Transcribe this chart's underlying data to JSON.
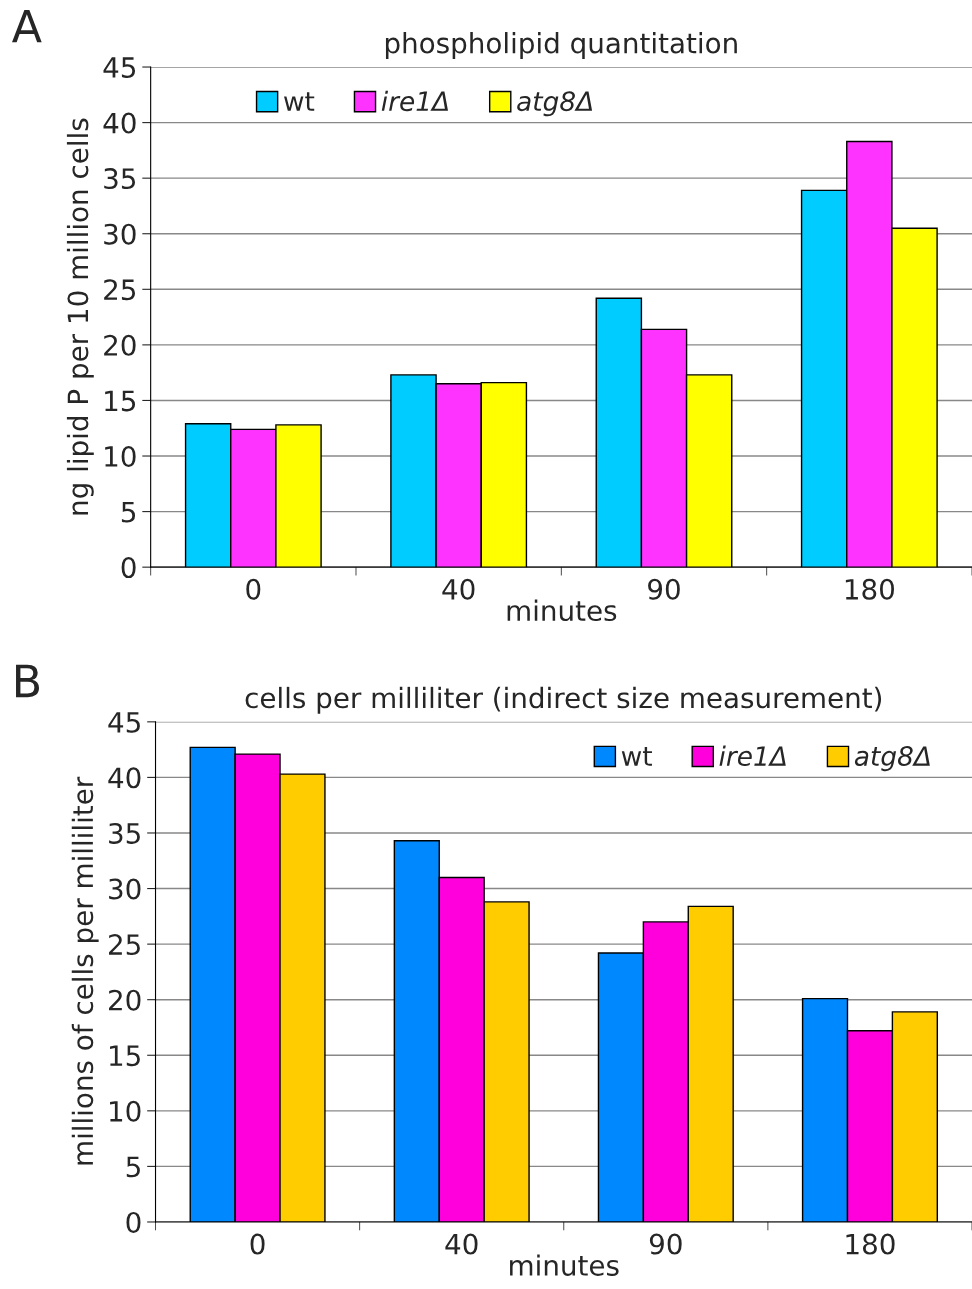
{
  "chart_data": [
    {
      "type": "bar",
      "title": "phospholipid quantitation",
      "xlabel": "minutes",
      "ylabel": "ng lipid P per 10 million cells",
      "categories": [
        "0",
        "40",
        "90",
        "180"
      ],
      "series": [
        {
          "name": "wt",
          "color": "#00ccff",
          "values": [
            12.9,
            17.3,
            24.2,
            33.9
          ]
        },
        {
          "name": "ire1Δ",
          "color": "#ff33ff",
          "values": [
            12.4,
            16.5,
            21.4,
            38.3
          ]
        },
        {
          "name": "atg8Δ",
          "color": "#ffff00",
          "values": [
            12.8,
            16.6,
            17.3,
            30.5
          ]
        }
      ],
      "ylim": [
        0,
        45
      ],
      "yticks": [
        0,
        5,
        10,
        15,
        20,
        25,
        30,
        35,
        40,
        45
      ],
      "grid": "y",
      "legend": "top left",
      "annotations": [
        "A"
      ]
    },
    {
      "type": "bar",
      "title": "cells per milliliter (indirect size measurement)",
      "xlabel": "minutes",
      "ylabel": "millions of cells per milliliter",
      "categories": [
        "0",
        "40",
        "90",
        "180"
      ],
      "series": [
        {
          "name": "wt",
          "color": "#0088ff",
          "values": [
            42.7,
            34.3,
            24.2,
            20.1
          ]
        },
        {
          "name": "ire1Δ",
          "color": "#ff00dd",
          "values": [
            42.1,
            31.0,
            27.0,
            17.2
          ]
        },
        {
          "name": "atg8Δ",
          "color": "#ffcc00",
          "values": [
            40.3,
            28.8,
            28.4,
            18.9
          ]
        }
      ],
      "ylim": [
        0,
        45
      ],
      "yticks": [
        0,
        5,
        10,
        15,
        20,
        25,
        30,
        35,
        40,
        45
      ],
      "grid": "y",
      "legend": "top right",
      "annotations": [
        "B"
      ]
    }
  ]
}
